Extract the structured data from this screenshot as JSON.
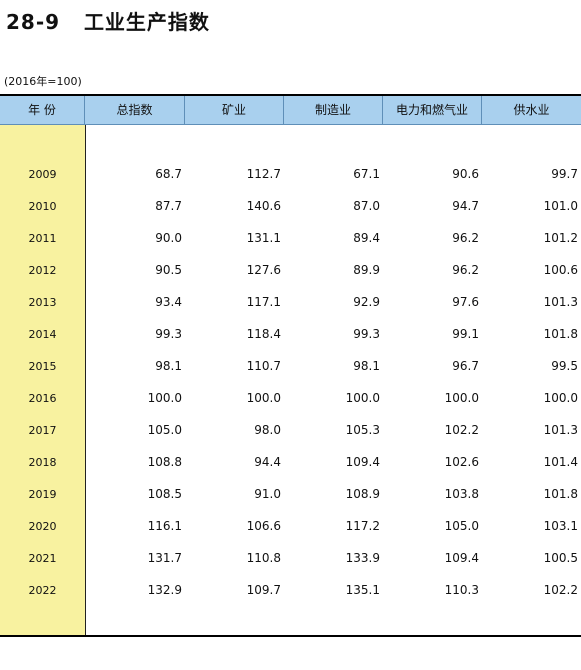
{
  "title": "28-9   工业生产指数",
  "note": "(2016年=100)",
  "table": {
    "headers": [
      "年 份",
      "总指数",
      "矿业",
      "制造业",
      "电力和燃气业",
      "供水业"
    ],
    "rows": [
      [
        "2009",
        "68.7",
        "112.7",
        "67.1",
        "90.6",
        "99.7"
      ],
      [
        "2010",
        "87.7",
        "140.6",
        "87.0",
        "94.7",
        "101.0"
      ],
      [
        "2011",
        "90.0",
        "131.1",
        "89.4",
        "96.2",
        "101.2"
      ],
      [
        "2012",
        "90.5",
        "127.6",
        "89.9",
        "96.2",
        "100.6"
      ],
      [
        "2013",
        "93.4",
        "117.1",
        "92.9",
        "97.6",
        "101.3"
      ],
      [
        "2014",
        "99.3",
        "118.4",
        "99.3",
        "99.1",
        "101.8"
      ],
      [
        "2015",
        "98.1",
        "110.7",
        "98.1",
        "96.7",
        "99.5"
      ],
      [
        "2016",
        "100.0",
        "100.0",
        "100.0",
        "100.0",
        "100.0"
      ],
      [
        "2017",
        "105.0",
        "98.0",
        "105.3",
        "102.2",
        "101.3"
      ],
      [
        "2018",
        "108.8",
        "94.4",
        "109.4",
        "102.6",
        "101.4"
      ],
      [
        "2019",
        "108.5",
        "91.0",
        "108.9",
        "103.8",
        "101.8"
      ],
      [
        "2020",
        "116.1",
        "106.6",
        "117.2",
        "105.0",
        "103.1"
      ],
      [
        "2021",
        "131.7",
        "110.8",
        "133.9",
        "109.4",
        "100.5"
      ],
      [
        "2022",
        "132.9",
        "109.7",
        "135.1",
        "110.3",
        "102.2"
      ]
    ]
  },
  "colors": {
    "header_bg": "#a9d0ee",
    "year_column_bg": "#f8f2a0"
  }
}
